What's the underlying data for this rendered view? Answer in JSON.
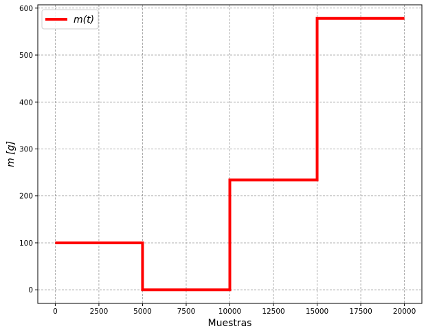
{
  "chart_data": {
    "type": "line",
    "xlabel": "Muestras",
    "ylabel": "m [g]",
    "xlim": [
      -1000,
      21000
    ],
    "ylim": [
      -29,
      607
    ],
    "x_ticks": [
      0,
      2500,
      5000,
      7500,
      10000,
      12500,
      15000,
      17500,
      20000
    ],
    "x_tick_labels": [
      "0",
      "2500",
      "5000",
      "7500",
      "10000",
      "12500",
      "15000",
      "17500",
      "20000"
    ],
    "y_ticks": [
      0,
      100,
      200,
      300,
      400,
      500,
      600
    ],
    "y_tick_labels": [
      "0",
      "100",
      "200",
      "300",
      "400",
      "500",
      "600"
    ],
    "grid": true,
    "legend_position": "top-left",
    "series": [
      {
        "name": "m(t)",
        "color": "#ff0000",
        "x": [
          0,
          5000,
          5000,
          10000,
          10000,
          15000,
          15000,
          20000
        ],
        "y": [
          100,
          100,
          0,
          0,
          234,
          234,
          578,
          578
        ]
      }
    ]
  }
}
